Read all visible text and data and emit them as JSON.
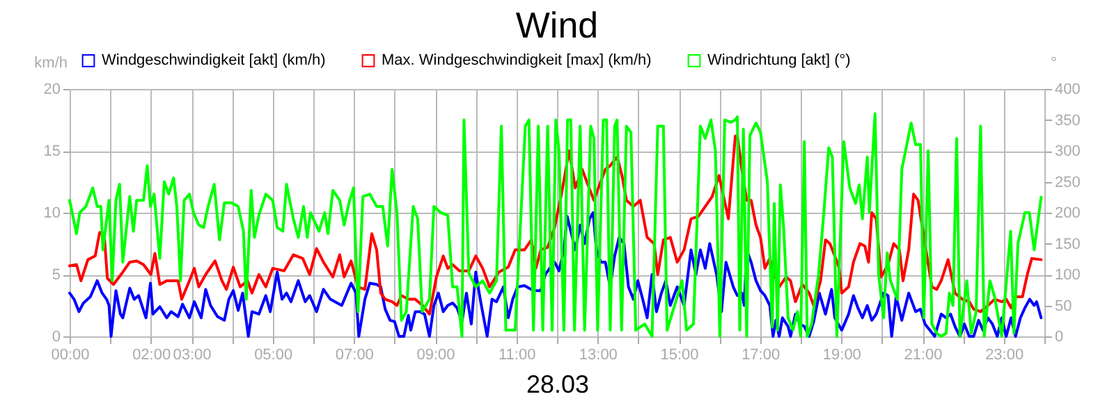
{
  "chart_data": {
    "type": "line",
    "title": "Wind",
    "xlabel": "28.03",
    "ylabel": "km/h",
    "y2label": "°",
    "legend": "top",
    "grid": true,
    "line_style": "solid",
    "marker": "none",
    "xlim": [
      0,
      24
    ],
    "xticks": [
      {
        "value": 0,
        "label": "00:00"
      },
      {
        "value": 1,
        "label": null
      },
      {
        "value": 2,
        "label": "02:00"
      },
      {
        "value": 3,
        "label": "03:00"
      },
      {
        "value": 4,
        "label": null
      },
      {
        "value": 5,
        "label": "05:00"
      },
      {
        "value": 6,
        "label": null
      },
      {
        "value": 7,
        "label": "07:00"
      },
      {
        "value": 8,
        "label": null
      },
      {
        "value": 9,
        "label": "09:00"
      },
      {
        "value": 10,
        "label": null
      },
      {
        "value": 11,
        "label": "11:00"
      },
      {
        "value": 12,
        "label": null
      },
      {
        "value": 13,
        "label": "13:00"
      },
      {
        "value": 14,
        "label": null
      },
      {
        "value": 15,
        "label": "15:00"
      },
      {
        "value": 16,
        "label": null
      },
      {
        "value": 17,
        "label": "17:00"
      },
      {
        "value": 18,
        "label": null
      },
      {
        "value": 19,
        "label": "19:00"
      },
      {
        "value": 20,
        "label": null
      },
      {
        "value": 21,
        "label": "21:00"
      },
      {
        "value": 22,
        "label": null
      },
      {
        "value": 23,
        "label": "23:00"
      },
      {
        "value": 24,
        "label": null
      }
    ],
    "ylim": [
      0,
      20
    ],
    "yticks": [
      0,
      5,
      10,
      15,
      20
    ],
    "y2lim": [
      0,
      400
    ],
    "y2ticks": [
      0,
      50,
      100,
      150,
      200,
      250,
      300,
      350,
      400
    ],
    "series": [
      {
        "name": "Windgeschwindigkeit [akt] (km/h)",
        "color": "#0000ff",
        "x": [
          0,
          0.11,
          0.23,
          0.34,
          0.51,
          0.68,
          0.8,
          0.91,
          0.97,
          1.02,
          1.14,
          1.25,
          1.31,
          1.48,
          1.59,
          1.7,
          1.88,
          1.99,
          2.05,
          2.22,
          2.39,
          2.5,
          2.67,
          2.78,
          2.95,
          3.07,
          3.24,
          3.35,
          3.47,
          3.64,
          3.81,
          3.92,
          4.03,
          4.15,
          4.26,
          4.4,
          4.49,
          4.66,
          4.83,
          4.94,
          5.11,
          5.23,
          5.34,
          5.45,
          5.63,
          5.8,
          5.91,
          6.08,
          6.25,
          6.42,
          6.7,
          6.93,
          7.05,
          7.12,
          7.27,
          7.39,
          7.56,
          7.66,
          7.77,
          7.89,
          8.0,
          8.11,
          8.23,
          8.34,
          8.4,
          8.51,
          8.63,
          8.74,
          8.86,
          8.97,
          9.08,
          9.2,
          9.31,
          9.43,
          9.54,
          9.66,
          9.77,
          9.89,
          10.0,
          10.11,
          10.28,
          10.4,
          10.51,
          10.68,
          10.8,
          10.91,
          11.03,
          11.2,
          11.42,
          11.6,
          11.71,
          11.82,
          11.94,
          12.05,
          12.17,
          12.25,
          12.34,
          12.45,
          12.57,
          12.68,
          12.8,
          12.89,
          12.97,
          13.08,
          13.19,
          13.31,
          13.42,
          13.53,
          13.65,
          13.76,
          13.88,
          13.99,
          14.11,
          14.22,
          14.34,
          14.45,
          14.57,
          14.68,
          14.79,
          14.96,
          15.13,
          15.3,
          15.42,
          15.53,
          15.65,
          15.76,
          15.93,
          16.05,
          16.16,
          16.34,
          16.44,
          16.55,
          16.61,
          16.67,
          16.78,
          16.9,
          17.01,
          17.12,
          17.24,
          17.32,
          17.39,
          17.47,
          17.55,
          17.69,
          17.75,
          17.87,
          17.98,
          18.09,
          18.21,
          18.32,
          18.46,
          18.61,
          18.76,
          18.84,
          19.01,
          19.18,
          19.3,
          19.41,
          19.52,
          19.64,
          19.75,
          19.86,
          20.04,
          20.15,
          20.24,
          20.35,
          20.49,
          20.66,
          20.83,
          20.95,
          21.06,
          21.18,
          21.3,
          21.46,
          21.58,
          21.69,
          21.8,
          21.92,
          22.03,
          22.15,
          22.26,
          22.38,
          22.49,
          22.61,
          22.72,
          22.84,
          22.95,
          23.06,
          23.18,
          23.29,
          23.41,
          23.52,
          23.64,
          23.75,
          23.81,
          23.92
        ],
        "values": [
          3.5,
          3.0,
          2.0,
          2.7,
          3.2,
          4.5,
          3.5,
          3.0,
          2.5,
          0,
          3.7,
          1.8,
          1.5,
          3.9,
          3.0,
          3.3,
          1.5,
          4.3,
          1.8,
          2.4,
          1.5,
          2.0,
          1.6,
          2.6,
          1.5,
          2.8,
          1.5,
          3.8,
          2.5,
          1.6,
          1.3,
          3.0,
          3.7,
          2.1,
          3.5,
          0,
          2.0,
          1.8,
          3.3,
          2.0,
          5.2,
          3.0,
          3.5,
          2.8,
          4.5,
          2.8,
          3.3,
          2.0,
          3.8,
          3.0,
          2.5,
          4.3,
          3.5,
          0,
          3.0,
          4.3,
          4.2,
          4.0,
          2.2,
          1.3,
          1.2,
          0,
          0,
          1.7,
          0.5,
          2.0,
          2.0,
          1.8,
          0,
          2.5,
          3.5,
          2.0,
          2.5,
          2.7,
          2.3,
          1.2,
          3.5,
          1.0,
          5.2,
          3.0,
          0,
          3.0,
          2.8,
          4.0,
          1.5,
          3.0,
          4.0,
          4.1,
          3.7,
          3.7,
          5.0,
          5.5,
          6.0,
          5.3,
          7.0,
          9.7,
          8.5,
          7.0,
          9.0,
          7.5,
          9.5,
          10.0,
          7.0,
          6.0,
          6.0,
          4.0,
          6.5,
          8.0,
          7.5,
          4.0,
          3.0,
          4.5,
          3.0,
          1.5,
          5.0,
          2.0,
          3.5,
          4.5,
          2.5,
          4.0,
          2.5,
          7.0,
          5.0,
          7.0,
          5.5,
          7.5,
          5.0,
          2.0,
          6.0,
          4.0,
          3.3,
          3.5,
          2.5,
          7.0,
          6.0,
          4.5,
          3.7,
          3.3,
          2.5,
          0,
          1.3,
          0,
          1.5,
          0.8,
          0,
          1.8,
          1.0,
          0.8,
          0,
          1.2,
          3.5,
          1.8,
          3.8,
          1.5,
          0.5,
          1.8,
          3.3,
          2.3,
          1.5,
          2.5,
          1.3,
          1.8,
          3.5,
          3.3,
          0,
          3.2,
          1.3,
          3.5,
          2.0,
          2.2,
          1.0,
          0.5,
          0,
          1.8,
          1.5,
          1.8,
          0.8,
          0,
          1.0,
          0,
          0,
          1.3,
          0.5,
          1.5,
          1.0,
          0,
          1.5,
          0,
          1.5,
          0,
          1.5,
          2.3,
          3.0,
          2.5,
          2.8,
          1.5
        ]
      },
      {
        "name": "Max. Windgeschwindigkeit [max] (km/h)",
        "color": "#ff0000",
        "x": [
          0,
          0.17,
          0.28,
          0.45,
          0.63,
          0.74,
          0.85,
          0.93,
          1.08,
          1.31,
          1.48,
          1.65,
          1.82,
          2.0,
          2.1,
          2.22,
          2.39,
          2.67,
          2.76,
          2.95,
          3.07,
          3.18,
          3.35,
          3.58,
          3.75,
          3.86,
          4.03,
          4.2,
          4.38,
          4.49,
          4.66,
          4.83,
          5.0,
          5.28,
          5.51,
          5.74,
          5.91,
          6.08,
          6.25,
          6.48,
          6.65,
          6.76,
          6.93,
          7.1,
          7.27,
          7.44,
          7.56,
          7.66,
          7.77,
          7.94,
          8.06,
          8.17,
          8.34,
          8.51,
          8.69,
          8.86,
          9.03,
          9.2,
          9.31,
          9.43,
          9.6,
          9.83,
          10.0,
          10.17,
          10.34,
          10.57,
          10.8,
          10.97,
          11.2,
          11.37,
          11.48,
          11.6,
          11.77,
          11.94,
          12.11,
          12.3,
          12.45,
          12.62,
          12.79,
          12.91,
          13.02,
          13.19,
          13.31,
          13.48,
          13.6,
          13.71,
          13.88,
          14.05,
          14.22,
          14.39,
          14.48,
          14.62,
          14.79,
          14.96,
          15.13,
          15.3,
          15.48,
          15.65,
          15.82,
          15.99,
          16.22,
          16.39,
          16.44,
          16.55,
          16.67,
          16.78,
          16.9,
          17.01,
          17.12,
          17.24,
          17.35,
          17.47,
          17.64,
          17.75,
          17.87,
          18.04,
          18.21,
          18.32,
          18.49,
          18.61,
          18.72,
          18.84,
          18.95,
          19.01,
          19.18,
          19.3,
          19.46,
          19.58,
          19.67,
          19.75,
          19.86,
          19.98,
          20.15,
          20.29,
          20.43,
          20.52,
          20.66,
          20.78,
          20.89,
          21.06,
          21.23,
          21.35,
          21.46,
          21.63,
          21.8,
          21.98,
          22.15,
          22.26,
          22.43,
          22.61,
          22.78,
          22.95,
          23.06,
          23.18,
          23.29,
          23.46,
          23.58,
          23.69,
          23.92
        ],
        "values": [
          5.7,
          5.8,
          4.5,
          6.2,
          6.5,
          8.4,
          8.3,
          4.7,
          4.2,
          5.2,
          6.0,
          6.1,
          5.8,
          5.0,
          6.7,
          4.2,
          4.5,
          4.5,
          3.0,
          4.5,
          5.5,
          4.0,
          5.0,
          6.1,
          4.5,
          3.8,
          5.6,
          4.0,
          4.5,
          3.5,
          5.0,
          4.0,
          5.5,
          5.3,
          6.6,
          6.3,
          5.0,
          7.1,
          6.0,
          4.8,
          6.6,
          4.8,
          6.1,
          4.0,
          3.8,
          8.3,
          7.0,
          3.5,
          3.0,
          2.8,
          2.5,
          3.3,
          3.0,
          3.0,
          2.5,
          1.8,
          4.8,
          6.5,
          5.5,
          5.8,
          5.3,
          5.3,
          6.5,
          5.5,
          4.0,
          5.2,
          5.6,
          7.0,
          7.0,
          7.8,
          5.5,
          7.0,
          7.2,
          8.8,
          11.5,
          15.0,
          12.0,
          13.5,
          12.0,
          11.0,
          12.0,
          13.5,
          13.8,
          14.5,
          13.0,
          11.0,
          10.5,
          11.0,
          8.0,
          7.5,
          5.0,
          7.8,
          8.0,
          6.0,
          7.0,
          9.5,
          9.7,
          10.5,
          11.3,
          13.0,
          9.5,
          16.2,
          16.2,
          13.5,
          11.0,
          11.0,
          9.0,
          8.0,
          5.5,
          6.3,
          5.0,
          4.0,
          4.8,
          4.5,
          2.8,
          4.2,
          3.5,
          2.5,
          4.5,
          7.8,
          7.5,
          6.5,
          5.5,
          3.5,
          4.0,
          6.0,
          7.5,
          7.3,
          6.0,
          10.0,
          9.5,
          4.8,
          5.8,
          7.5,
          7.0,
          4.5,
          7.0,
          11.5,
          11.0,
          7.5,
          4.0,
          3.8,
          4.5,
          6.2,
          3.5,
          3.0,
          2.8,
          2.2,
          2.0,
          2.5,
          3.0,
          2.8,
          3.0,
          2.3,
          3.2,
          3.2,
          5.0,
          6.3,
          6.2
        ]
      },
      {
        "name": "Windrichtung [akt] (°)",
        "color": "#00ff00",
        "axis": "y2",
        "x": [
          0,
          0.17,
          0.25,
          0.4,
          0.57,
          0.68,
          0.77,
          0.82,
          0.97,
          1.05,
          1.14,
          1.23,
          1.31,
          1.48,
          1.57,
          1.65,
          1.82,
          1.91,
          1.99,
          2.08,
          2.22,
          2.33,
          2.44,
          2.56,
          2.64,
          2.73,
          2.82,
          2.95,
          3.05,
          3.18,
          3.3,
          3.41,
          3.56,
          3.69,
          3.81,
          3.98,
          4.15,
          4.28,
          4.35,
          4.47,
          4.55,
          4.66,
          4.83,
          5.0,
          5.11,
          5.25,
          5.34,
          5.51,
          5.63,
          5.76,
          5.85,
          5.93,
          6.14,
          6.28,
          6.36,
          6.48,
          6.65,
          6.76,
          6.88,
          6.99,
          7.1,
          7.22,
          7.39,
          7.56,
          7.71,
          7.83,
          7.94,
          8.06,
          8.17,
          8.29,
          8.46,
          8.57,
          8.68,
          8.86,
          8.97,
          9.14,
          9.31,
          9.43,
          9.54,
          9.66,
          9.71,
          9.83,
          10.0,
          10.17,
          10.34,
          10.51,
          10.63,
          10.74,
          10.97,
          11.22,
          11.31,
          11.42,
          11.54,
          11.65,
          11.77,
          11.88,
          11.97,
          12.05,
          12.17,
          12.26,
          12.34,
          12.43,
          12.57,
          12.68,
          12.83,
          12.91,
          13.0,
          13.14,
          13.22,
          13.31,
          13.42,
          13.48,
          13.59,
          13.71,
          13.82,
          13.94,
          14.16,
          14.34,
          14.48,
          14.62,
          14.71,
          15.08,
          15.19,
          15.36,
          15.53,
          15.65,
          15.79,
          15.9,
          16.01,
          16.13,
          16.28,
          16.39,
          16.44,
          16.5,
          16.59,
          16.67,
          16.75,
          16.9,
          17.01,
          17.18,
          17.3,
          17.35,
          17.43,
          17.5,
          17.58,
          17.69,
          17.81,
          17.92,
          18.0,
          18.09,
          18.16,
          18.27,
          18.44,
          18.57,
          18.69,
          18.78,
          18.89,
          19.06,
          19.21,
          19.35,
          19.44,
          19.52,
          19.64,
          19.69,
          19.83,
          19.92,
          20.04,
          20.13,
          20.21,
          20.38,
          20.49,
          20.72,
          20.83,
          20.95,
          21.03,
          21.14,
          21.23,
          21.35,
          21.46,
          21.58,
          21.66,
          21.75,
          21.84,
          21.92,
          22.09,
          22.2,
          22.32,
          22.43,
          22.52,
          22.66,
          22.77,
          22.95,
          23.17,
          23.25,
          23.35,
          23.52,
          23.63,
          23.75,
          23.92
        ],
        "values": [
          220,
          166,
          200,
          210,
          240,
          210,
          210,
          140,
          220,
          90,
          220,
          246,
          120,
          226,
          170,
          220,
          220,
          276,
          210,
          230,
          126,
          250,
          230,
          256,
          210,
          90,
          220,
          230,
          200,
          180,
          176,
          210,
          246,
          156,
          216,
          216,
          210,
          170,
          60,
          236,
          160,
          196,
          230,
          220,
          176,
          170,
          246,
          190,
          160,
          210,
          160,
          200,
          170,
          200,
          166,
          236,
          220,
          180,
          216,
          240,
          40,
          226,
          230,
          210,
          210,
          146,
          270,
          200,
          26,
          40,
          210,
          190,
          40,
          60,
          210,
          200,
          196,
          80,
          80,
          0,
          350,
          102,
          80,
          90,
          70,
          90,
          340,
          10,
          10,
          340,
          350,
          10,
          340,
          10,
          340,
          10,
          350,
          300,
          10,
          350,
          350,
          10,
          340,
          10,
          340,
          320,
          10,
          350,
          350,
          10,
          340,
          350,
          10,
          340,
          330,
          10,
          20,
          0,
          340,
          340,
          10,
          90,
          10,
          20,
          340,
          320,
          350,
          300,
          0,
          350,
          346,
          350,
          355,
          10,
          335,
          0,
          325,
          345,
          330,
          250,
          15,
          215,
          10,
          245,
          175,
          30,
          10,
          40,
          0,
          315,
          0,
          20,
          100,
          200,
          305,
          290,
          0,
          315,
          240,
          215,
          245,
          190,
          290,
          200,
          360,
          100,
          30,
          135,
          90,
          60,
          270,
          345,
          310,
          310,
          30,
          300,
          20,
          5,
          0,
          5,
          70,
          50,
          320,
          0,
          90,
          5,
          40,
          340,
          0,
          90,
          65,
          0,
          170,
          5,
          150,
          200,
          200,
          140,
          225
        ]
      }
    ]
  }
}
